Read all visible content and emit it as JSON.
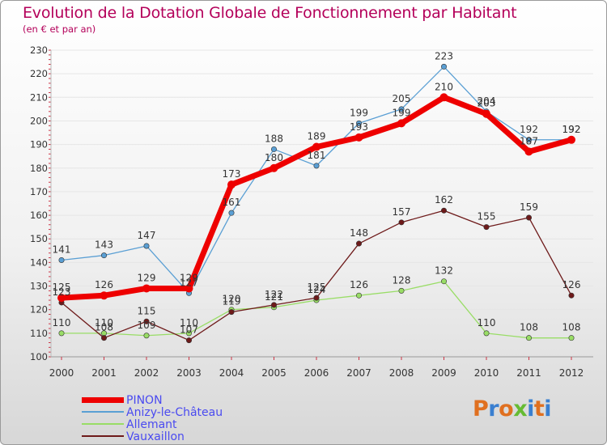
{
  "header": {
    "title": "Evolution de la Dotation Globale de Fonctionnement par Habitant",
    "subtitle": "(en € et par an)"
  },
  "colors": {
    "title": "#b4005a",
    "axis_text": "#333333",
    "legend_text": "#4a4af0",
    "PINON": "#ee0000",
    "Anizy-le-Château": "#5a9fd4",
    "Allemant": "#99dd66",
    "Vauxaillon": "#6e1a1a"
  },
  "chart_data": {
    "type": "line",
    "title": "Evolution de la Dotation Globale de Fonctionnement par Habitant",
    "subtitle": "(en € et par an)",
    "x": [
      "2000",
      "2001",
      "2002",
      "2003",
      "2004",
      "2005",
      "2006",
      "2007",
      "2008",
      "2009",
      "2010",
      "2011",
      "2012"
    ],
    "ylim": [
      100,
      230
    ],
    "yticks": [
      100,
      110,
      120,
      130,
      140,
      150,
      160,
      170,
      180,
      190,
      200,
      210,
      220,
      230
    ],
    "grid": "horizontal",
    "legend_position": "bottom-left",
    "series": [
      {
        "name": "Anizy-le-Château",
        "values": [
          141,
          143,
          147,
          127,
          161,
          188,
          181,
          199,
          205,
          223,
          204,
          192,
          192
        ]
      },
      {
        "name": "Allemant",
        "values": [
          110,
          110,
          109,
          110,
          120,
          121,
          124,
          126,
          128,
          132,
          110,
          108,
          108
        ]
      },
      {
        "name": "Vauxaillon",
        "values": [
          123,
          108,
          115,
          107,
          119,
          122,
          125,
          148,
          157,
          162,
          155,
          159,
          126
        ]
      },
      {
        "name": "PINON",
        "values": [
          125,
          126,
          129,
          129,
          173,
          180,
          189,
          193,
          199,
          210,
          203,
          187,
          192
        ]
      }
    ]
  },
  "legend": {
    "items": [
      "PINON",
      "Anizy-le-Château",
      "Allemant",
      "Vauxaillon"
    ]
  },
  "logo": {
    "text": "Proxiti",
    "letter_colors": [
      "#e07020",
      "#3a7fd0",
      "#e07020",
      "#66bb33",
      "#3a7fd0",
      "#e07020",
      "#3a7fd0"
    ]
  }
}
